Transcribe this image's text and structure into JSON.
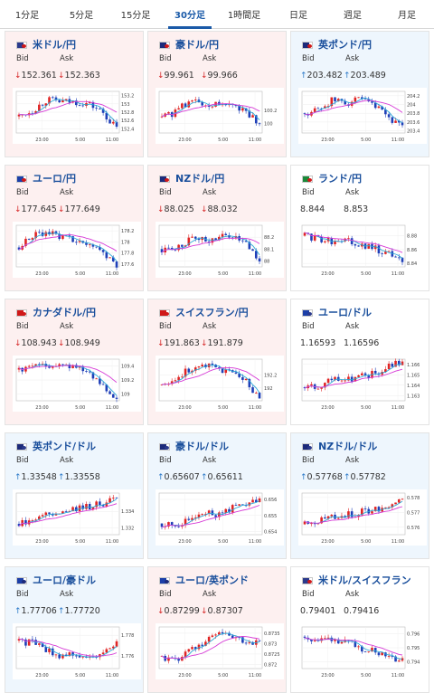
{
  "tabs": [
    {
      "label": "1分足",
      "active": false
    },
    {
      "label": "5分足",
      "active": false
    },
    {
      "label": "15分足",
      "active": false
    },
    {
      "label": "30分足",
      "active": true
    },
    {
      "label": "1時間足",
      "active": false
    },
    {
      "label": "日足",
      "active": false
    },
    {
      "label": "週足",
      "active": false
    },
    {
      "label": "月足",
      "active": false
    }
  ],
  "labels": {
    "bid": "Bid",
    "ask": "Ask"
  },
  "x_ticks": [
    "23:00",
    "5:00",
    "11:00"
  ],
  "colors": {
    "up_candle": "#e02424",
    "down_candle": "#1f3fb8",
    "ma_fast": "#2aa7d6",
    "ma_slow": "#d63ad6",
    "card_down": "#fdf0f0",
    "card_up": "#eef6fd"
  },
  "pairs": [
    {
      "name": "米ドル/円",
      "dir": "down",
      "bid": "152.361",
      "ask": "152.363",
      "flag": "us-jp-flag-icon",
      "flagc": [
        "#2b3a8c",
        "#d01818"
      ],
      "ticks": [
        "153.2",
        "153",
        "152.8",
        "152.6",
        "152.4"
      ],
      "ylim": [
        152.3,
        153.3
      ],
      "trend": [
        152.7,
        152.85,
        153.1,
        153.05,
        153.05,
        153.0,
        152.8,
        152.4
      ]
    },
    {
      "name": "豪ドル/円",
      "dir": "down",
      "bid": "99.961",
      "ask": "99.966",
      "flag": "au-jp-flag-icon",
      "flagc": [
        "#1c2a7a",
        "#d01818"
      ],
      "ticks": [
        "100.2",
        "100"
      ],
      "ylim": [
        99.85,
        100.5
      ],
      "trend": [
        100.1,
        100.18,
        100.35,
        100.3,
        100.3,
        100.28,
        100.2,
        99.95
      ]
    },
    {
      "name": "英ポンド/円",
      "dir": "up",
      "bid": "203.482",
      "ask": "203.489",
      "flag": "gb-jp-flag-icon",
      "flagc": [
        "#1c2a7a",
        "#d01818"
      ],
      "ticks": [
        "204.2",
        "204",
        "203.8",
        "203.6",
        "203.4"
      ],
      "ylim": [
        203.35,
        204.3
      ],
      "trend": [
        203.8,
        203.9,
        204.1,
        204.05,
        204.1,
        203.95,
        203.7,
        203.45
      ]
    },
    {
      "name": "ユーロ/円",
      "dir": "down",
      "bid": "177.645",
      "ask": "177.649",
      "flag": "eu-jp-flag-icon",
      "flagc": [
        "#1c3fa8",
        "#d01818"
      ],
      "ticks": [
        "178.2",
        "178",
        "177.8",
        "177.6"
      ],
      "ylim": [
        177.55,
        178.3
      ],
      "trend": [
        177.9,
        178.1,
        178.2,
        178.1,
        178.05,
        178.0,
        177.8,
        177.6
      ]
    },
    {
      "name": "NZドル/円",
      "dir": "down",
      "bid": "88.025",
      "ask": "88.032",
      "flag": "nz-jp-flag-icon",
      "flagc": [
        "#1c2a7a",
        "#d01818"
      ],
      "ticks": [
        "88.2",
        "88.1",
        "88"
      ],
      "ylim": [
        87.95,
        88.3
      ],
      "trend": [
        88.1,
        88.12,
        88.18,
        88.17,
        88.2,
        88.22,
        88.15,
        88.02
      ]
    },
    {
      "name": "ランド/円",
      "dir": "flat",
      "bid": "8.844",
      "ask": "8.853",
      "flag": "za-jp-flag-icon",
      "flagc": [
        "#1a8a3a",
        "#d01818"
      ],
      "ticks": [
        "8.88",
        "8.86",
        "8.84"
      ],
      "ylim": [
        8.835,
        8.895
      ],
      "trend": [
        8.88,
        8.875,
        8.87,
        8.872,
        8.865,
        8.862,
        8.855,
        8.845
      ]
    },
    {
      "name": "カナダドル/円",
      "dir": "down",
      "bid": "108.943",
      "ask": "108.949",
      "flag": "ca-jp-flag-icon",
      "flagc": [
        "#d01818",
        "#d01818"
      ],
      "ticks": [
        "109.4",
        "109.2",
        "109"
      ],
      "ylim": [
        108.9,
        109.5
      ],
      "trend": [
        109.35,
        109.4,
        109.38,
        109.4,
        109.42,
        109.3,
        109.1,
        108.95
      ]
    },
    {
      "name": "スイスフラン/円",
      "dir": "down",
      "bid": "191.863",
      "ask": "191.879",
      "flag": "ch-jp-flag-icon",
      "flagc": [
        "#d01818",
        "#d01818"
      ],
      "ticks": [
        "192.2",
        "192"
      ],
      "ylim": [
        191.8,
        192.45
      ],
      "trend": [
        192.05,
        192.15,
        192.3,
        192.35,
        192.3,
        192.25,
        192.1,
        191.85
      ]
    },
    {
      "name": "ユーロ/ドル",
      "dir": "flat",
      "bid": "1.16593",
      "ask": "1.16596",
      "flag": "eu-us-flag-icon",
      "flagc": [
        "#1c3fa8",
        "#2b3a8c"
      ],
      "ticks": [
        "1.166",
        "1.165",
        "1.164",
        "1.163"
      ],
      "ylim": [
        1.1625,
        1.1665
      ],
      "trend": [
        1.1638,
        1.164,
        1.1645,
        1.1644,
        1.1648,
        1.1652,
        1.1657,
        1.1663
      ]
    },
    {
      "name": "英ポンド/ドル",
      "dir": "up",
      "bid": "1.33548",
      "ask": "1.33558",
      "flag": "gb-us-flag-icon",
      "flagc": [
        "#1c2a7a",
        "#2b3a8c"
      ],
      "ticks": [
        "1.334",
        "1.332"
      ],
      "ylim": [
        1.3312,
        1.3362
      ],
      "trend": [
        1.3325,
        1.3327,
        1.3335,
        1.3338,
        1.3342,
        1.3345,
        1.335,
        1.3356
      ]
    },
    {
      "name": "豪ドル/ドル",
      "dir": "up",
      "bid": "0.65607",
      "ask": "0.65611",
      "flag": "au-us-flag-icon",
      "flagc": [
        "#1c2a7a",
        "#2b3a8c"
      ],
      "ticks": [
        "0.656",
        "0.655",
        "0.654"
      ],
      "ylim": [
        0.6538,
        0.6564
      ],
      "trend": [
        0.6545,
        0.6543,
        0.6548,
        0.6552,
        0.6551,
        0.6554,
        0.6558,
        0.656
      ]
    },
    {
      "name": "NZドル/ドル",
      "dir": "up",
      "bid": "0.57768",
      "ask": "0.57782",
      "flag": "nz-us-flag-icon",
      "flagc": [
        "#1c2a7a",
        "#2b3a8c"
      ],
      "ticks": [
        "0.578",
        "0.577",
        "0.576"
      ],
      "ylim": [
        0.5755,
        0.5783
      ],
      "trend": [
        0.5762,
        0.5764,
        0.5767,
        0.5768,
        0.577,
        0.5772,
        0.5775,
        0.5778
      ]
    },
    {
      "name": "ユーロ/豪ドル",
      "dir": "up",
      "bid": "1.77706",
      "ask": "1.77720",
      "flag": "eu-au-flag-icon",
      "flagc": [
        "#1c3fa8",
        "#1c2a7a"
      ],
      "ticks": [
        "1.778",
        "1.776"
      ],
      "ylim": [
        1.7748,
        1.7788
      ],
      "trend": [
        1.7775,
        1.7772,
        1.7765,
        1.776,
        1.7762,
        1.7758,
        1.7765,
        1.7772
      ]
    },
    {
      "name": "ユーロ/英ポンド",
      "dir": "down",
      "bid": "0.87299",
      "ask": "0.87307",
      "flag": "eu-gb-flag-icon",
      "flagc": [
        "#1c3fa8",
        "#1c2a7a"
      ],
      "ticks": [
        "0.8735",
        "0.873",
        "0.8725",
        "0.872"
      ],
      "ylim": [
        0.8718,
        0.8738
      ],
      "trend": [
        0.8724,
        0.8722,
        0.8727,
        0.8731,
        0.8735,
        0.8733,
        0.8731,
        0.873
      ]
    },
    {
      "name": "米ドル/スイスフラン",
      "dir": "flat",
      "bid": "0.79401",
      "ask": "0.79416",
      "flag": "us-ch-flag-icon",
      "flagc": [
        "#2b3a8c",
        "#d01818"
      ],
      "ticks": [
        "0.796",
        "0.795",
        "0.794"
      ],
      "ylim": [
        0.7935,
        0.7965
      ],
      "trend": [
        0.7958,
        0.7955,
        0.7957,
        0.7953,
        0.795,
        0.7948,
        0.7945,
        0.794
      ]
    }
  ]
}
